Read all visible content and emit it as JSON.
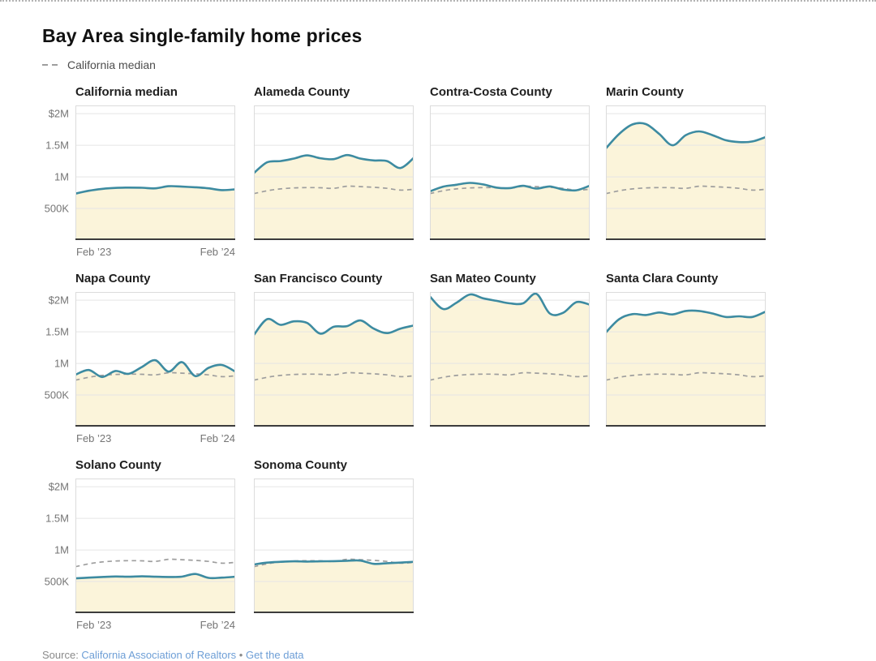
{
  "page": {
    "title": "Bay Area single-family home prices"
  },
  "legend": {
    "label": "California median"
  },
  "axis": {
    "y_tick_labels": [
      "$2M",
      "1.5M",
      "1M",
      "500K"
    ],
    "y_tick_values_k": [
      2000,
      1500,
      1000,
      500
    ],
    "x_left": "Feb ’23",
    "x_right": "Feb ’24"
  },
  "colors": {
    "line": "#3d8ba1",
    "fill": "#fbf4da",
    "dashed": "#9e9e9e",
    "grid": "#e5e5e5",
    "frame": "#dcdcdc",
    "baseline": "#3c3c3c"
  },
  "footer": {
    "prefix": "Source: ",
    "link1": "California Association of Realtors",
    "sep": " • ",
    "link2": "Get the data"
  },
  "chart_data": {
    "type": "line",
    "title": "Bay Area single-family home prices",
    "unit": "USD, thousands",
    "x_range": [
      "Feb ’23",
      "Feb ’24"
    ],
    "x_points": 13,
    "y_max_k": 2130,
    "ylim": [
      0,
      2130
    ],
    "grid": true,
    "legend_position": "top-left",
    "california_median_k": [
      735,
      780,
      810,
      825,
      830,
      828,
      818,
      852,
      845,
      835,
      818,
      790,
      803
    ],
    "charts": [
      {
        "title": "California median",
        "show_ca_dashed": false,
        "values_k": [
          735,
          780,
          810,
          825,
          830,
          828,
          818,
          852,
          845,
          835,
          818,
          790,
          803
        ]
      },
      {
        "title": "Alameda County",
        "show_ca_dashed": true,
        "values_k": [
          1060,
          1230,
          1250,
          1290,
          1340,
          1295,
          1280,
          1345,
          1290,
          1260,
          1250,
          1140,
          1300
        ]
      },
      {
        "title": "Contra-Costa County",
        "show_ca_dashed": true,
        "values_k": [
          770,
          845,
          875,
          905,
          880,
          830,
          822,
          858,
          815,
          848,
          800,
          788,
          860
        ]
      },
      {
        "title": "Marin County",
        "show_ca_dashed": true,
        "values_k": [
          1450,
          1680,
          1830,
          1835,
          1680,
          1500,
          1660,
          1720,
          1660,
          1580,
          1550,
          1560,
          1630
        ]
      },
      {
        "title": "Napa County",
        "show_ca_dashed": true,
        "values_k": [
          820,
          895,
          785,
          880,
          835,
          945,
          1050,
          870,
          1020,
          800,
          930,
          975,
          870
        ]
      },
      {
        "title": "San Francisco County",
        "show_ca_dashed": true,
        "values_k": [
          1450,
          1700,
          1610,
          1665,
          1640,
          1470,
          1580,
          1590,
          1680,
          1550,
          1480,
          1550,
          1600
        ]
      },
      {
        "title": "San Mateo County",
        "show_ca_dashed": true,
        "values_k": [
          2060,
          1860,
          1960,
          2090,
          2030,
          1990,
          1950,
          1950,
          2100,
          1790,
          1800,
          1970,
          1930
        ]
      },
      {
        "title": "Santa Clara County",
        "show_ca_dashed": true,
        "values_k": [
          1490,
          1700,
          1780,
          1765,
          1805,
          1775,
          1830,
          1830,
          1790,
          1735,
          1745,
          1735,
          1820
        ]
      },
      {
        "title": "Solano County",
        "show_ca_dashed": true,
        "values_k": [
          550,
          562,
          572,
          580,
          576,
          582,
          576,
          572,
          578,
          620,
          558,
          562,
          576
        ]
      },
      {
        "title": "Sonoma County",
        "show_ca_dashed": true,
        "values_k": [
          770,
          800,
          812,
          820,
          816,
          820,
          822,
          828,
          832,
          780,
          790,
          800,
          812
        ]
      }
    ]
  }
}
